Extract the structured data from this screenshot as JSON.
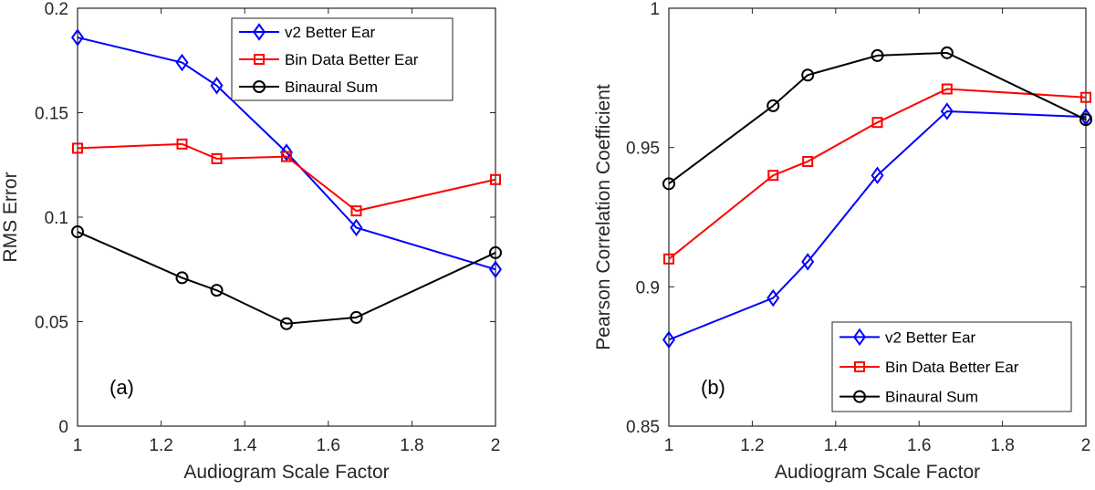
{
  "chart_data": [
    {
      "type": "line",
      "panel_label": "(a)",
      "xlabel": "Audiogram Scale Factor",
      "ylabel": "RMS Error",
      "xlim": [
        1,
        2
      ],
      "ylim": [
        0,
        0.2
      ],
      "xticks": [
        1,
        1.2,
        1.4,
        1.6,
        1.8,
        2
      ],
      "xtick_labels": [
        "1",
        "1.2",
        "1.4",
        "1.6",
        "1.8",
        "2"
      ],
      "yticks": [
        0,
        0.05,
        0.1,
        0.15,
        0.2
      ],
      "ytick_labels": [
        "0",
        "0.05",
        "0.1",
        "0.15",
        "0.2"
      ],
      "x": [
        1,
        1.25,
        1.333,
        1.5,
        1.667,
        2
      ],
      "legend_position": "top-right",
      "grid": false,
      "series": [
        {
          "name": "v2 Better Ear",
          "color": "#0000ff",
          "marker": "diamond",
          "values": [
            0.186,
            0.174,
            0.163,
            0.131,
            0.095,
            0.075
          ]
        },
        {
          "name": "Bin Data Better Ear",
          "color": "#ff0000",
          "marker": "square",
          "values": [
            0.133,
            0.135,
            0.128,
            0.129,
            0.103,
            0.118
          ]
        },
        {
          "name": "Binaural Sum",
          "color": "#000000",
          "marker": "circle",
          "values": [
            0.093,
            0.071,
            0.065,
            0.049,
            0.052,
            0.083
          ]
        }
      ]
    },
    {
      "type": "line",
      "panel_label": "(b)",
      "xlabel": "Audiogram Scale Factor",
      "ylabel": "Pearson Correlation Coefficient",
      "xlim": [
        1,
        2
      ],
      "ylim": [
        0.85,
        1
      ],
      "xticks": [
        1,
        1.2,
        1.4,
        1.6,
        1.8,
        2
      ],
      "xtick_labels": [
        "1",
        "1.2",
        "1.4",
        "1.6",
        "1.8",
        "2"
      ],
      "yticks": [
        0.85,
        0.9,
        0.95,
        1
      ],
      "ytick_labels": [
        "0.85",
        "0.9",
        "0.95",
        "1"
      ],
      "x": [
        1,
        1.25,
        1.333,
        1.5,
        1.667,
        2
      ],
      "legend_position": "bottom-right",
      "grid": false,
      "series": [
        {
          "name": "v2 Better Ear",
          "color": "#0000ff",
          "marker": "diamond",
          "values": [
            0.881,
            0.896,
            0.909,
            0.94,
            0.963,
            0.961
          ]
        },
        {
          "name": "Bin Data Better Ear",
          "color": "#ff0000",
          "marker": "square",
          "values": [
            0.91,
            0.94,
            0.945,
            0.959,
            0.971,
            0.968
          ]
        },
        {
          "name": "Binaural Sum",
          "color": "#000000",
          "marker": "circle",
          "values": [
            0.937,
            0.965,
            0.976,
            0.983,
            0.984,
            0.96
          ]
        }
      ]
    }
  ]
}
